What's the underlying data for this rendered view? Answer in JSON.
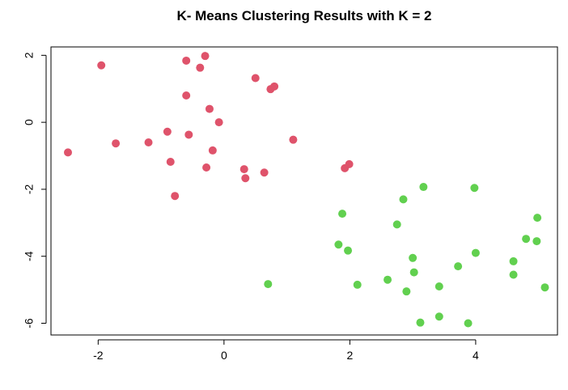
{
  "chart_data": {
    "type": "scatter",
    "title": "K- Means Clustering Results with K = 2",
    "xlabel": "",
    "ylabel": "",
    "xlim": [
      -2.75,
      5.3
    ],
    "ylim": [
      -6.35,
      2.25
    ],
    "x_ticks": [
      -2,
      0,
      2,
      4
    ],
    "x_tick_labels": [
      "-2",
      "0",
      "2",
      "4"
    ],
    "y_ticks": [
      2,
      0,
      -2,
      -4,
      -6
    ],
    "y_tick_labels": [
      "2",
      "0",
      "-2",
      "-4",
      "-6"
    ],
    "grid": false,
    "legend": "none",
    "series": [
      {
        "color": "#DF536B",
        "points": [
          [
            -2.48,
            -0.9
          ],
          [
            -1.95,
            1.7
          ],
          [
            -1.72,
            -0.63
          ],
          [
            -1.2,
            -0.6
          ],
          [
            -0.9,
            -0.28
          ],
          [
            -0.85,
            -1.18
          ],
          [
            -0.78,
            -2.2
          ],
          [
            -0.6,
            1.84
          ],
          [
            -0.6,
            0.8
          ],
          [
            -0.56,
            -0.37
          ],
          [
            -0.38,
            1.63
          ],
          [
            -0.3,
            1.98
          ],
          [
            -0.28,
            -1.35
          ],
          [
            -0.23,
            0.4
          ],
          [
            -0.18,
            -0.84
          ],
          [
            -0.08,
            0.0
          ],
          [
            0.32,
            -1.4
          ],
          [
            0.34,
            -1.67
          ],
          [
            0.5,
            1.32
          ],
          [
            0.64,
            -1.5
          ],
          [
            0.74,
            0.99
          ],
          [
            0.8,
            1.07
          ],
          [
            1.1,
            -0.52
          ],
          [
            1.92,
            -1.37
          ],
          [
            1.99,
            -1.25
          ]
        ]
      },
      {
        "color": "#61D04F",
        "points": [
          [
            0.7,
            -4.83
          ],
          [
            1.82,
            -3.65
          ],
          [
            1.88,
            -2.73
          ],
          [
            1.97,
            -3.83
          ],
          [
            2.12,
            -4.85
          ],
          [
            2.6,
            -4.7
          ],
          [
            2.75,
            -3.05
          ],
          [
            2.85,
            -2.3
          ],
          [
            2.9,
            -5.05
          ],
          [
            3.0,
            -4.05
          ],
          [
            3.02,
            -4.48
          ],
          [
            3.12,
            -5.98
          ],
          [
            3.17,
            -1.93
          ],
          [
            3.42,
            -5.8
          ],
          [
            3.42,
            -4.9
          ],
          [
            3.72,
            -4.3
          ],
          [
            3.88,
            -6.0
          ],
          [
            3.98,
            -1.96
          ],
          [
            4.0,
            -3.9
          ],
          [
            4.6,
            -4.15
          ],
          [
            4.6,
            -4.55
          ],
          [
            4.8,
            -3.48
          ],
          [
            4.97,
            -3.55
          ],
          [
            4.98,
            -2.85
          ],
          [
            5.1,
            -4.93
          ]
        ]
      }
    ]
  }
}
